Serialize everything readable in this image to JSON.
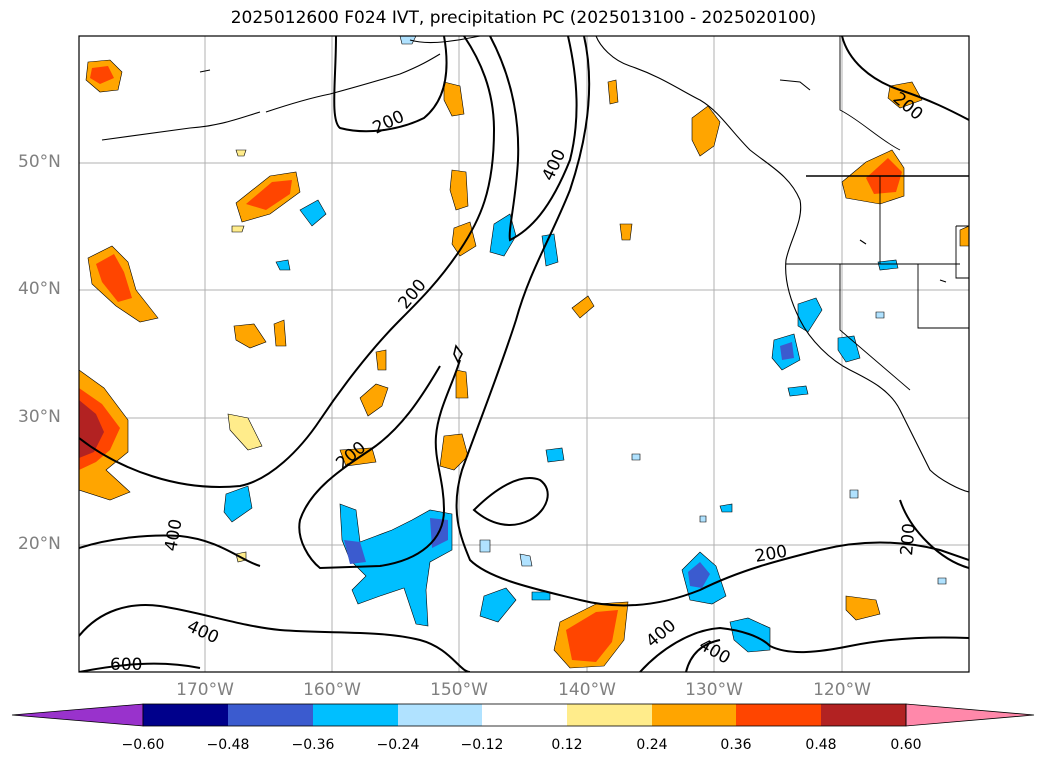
{
  "title": "2025012600 F024 IVT, precipitation PC (2025013100 - 2025020100)",
  "lat_labels": [
    "50°N",
    "40°N",
    "30°N",
    "20°N"
  ],
  "lon_labels": [
    "170°W",
    "160°W",
    "150°W",
    "140°W",
    "130°W",
    "120°W"
  ],
  "contour_labels": [
    "200",
    "200",
    "200",
    "400",
    "400",
    "400",
    "400",
    "400",
    "200",
    "200",
    "600",
    "200"
  ],
  "colorbar": {
    "ticks": [
      "−0.60",
      "−0.48",
      "−0.36",
      "−0.24",
      "−0.12",
      "0.12",
      "0.24",
      "0.36",
      "0.48",
      "0.60"
    ],
    "colors": [
      "#9932cc",
      "#00008b",
      "#3b5bcf",
      "#00bfff",
      "#b0e2ff",
      "#ffffff",
      "#ffec8b",
      "#ffa500",
      "#ff4500",
      "#b22222",
      "#ff88aa"
    ]
  }
}
